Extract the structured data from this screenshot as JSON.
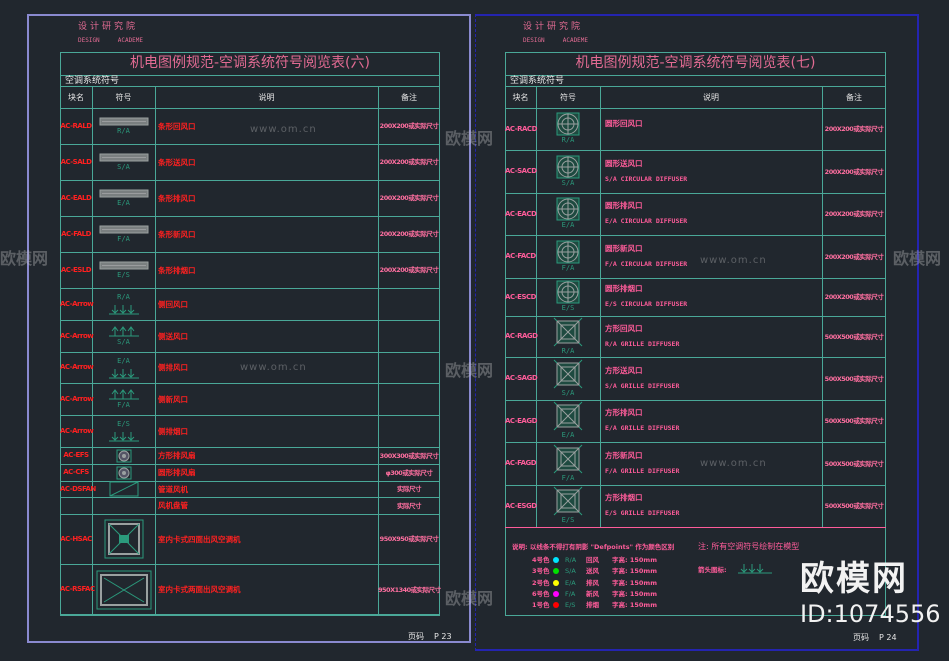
{
  "colors": {
    "line": "#4aa898",
    "title": "#e26b93",
    "code_left": "#ff2020",
    "code_right": "#ff5c9a",
    "note": "#ff5c9a",
    "symbol": "#2b9a7c"
  },
  "left": {
    "academy_cn": "设计研究院",
    "academy_en": "DESIGN     ACADEME",
    "title": "机电图例规范-空调系统符号阅览表(六)",
    "subtitle": "空调系统符号",
    "headers": [
      "块名",
      "符号",
      "说明",
      "备注"
    ],
    "rows": [
      {
        "code": "AC-RALD",
        "symbol": "bar",
        "label": "R/A",
        "desc": "条形回风口",
        "note": "200X200或实际尺寸"
      },
      {
        "code": "AC-SALD",
        "symbol": "bar",
        "label": "S/A",
        "desc": "条形送风口",
        "note": "200X200或实际尺寸"
      },
      {
        "code": "AC-EALD",
        "symbol": "bar",
        "label": "E/A",
        "desc": "条形排风口",
        "note": "200X200或实际尺寸"
      },
      {
        "code": "AC-FALD",
        "symbol": "bar",
        "label": "F/A",
        "desc": "条形新风口",
        "note": "200X200或实际尺寸"
      },
      {
        "code": "AC-ESLD",
        "symbol": "bar",
        "label": "E/S",
        "desc": "条形排烟口",
        "note": "200X200或实际尺寸"
      },
      {
        "code": "AC-Arrow",
        "symbol": "arrow-down",
        "label": "R/A",
        "desc": "侧回风口",
        "note": ""
      },
      {
        "code": "AC-Arrow",
        "symbol": "arrow-up",
        "label": "S/A",
        "desc": "侧送风口",
        "note": ""
      },
      {
        "code": "AC-Arrow",
        "symbol": "arrow-down",
        "label": "E/A",
        "desc": "侧排风口",
        "note": ""
      },
      {
        "code": "AC-Arrow",
        "symbol": "arrow-up",
        "label": "F/A",
        "desc": "侧新风口",
        "note": ""
      },
      {
        "code": "AC-Arrow",
        "symbol": "arrow-down",
        "label": "E/S",
        "desc": "侧排烟口",
        "note": ""
      },
      {
        "code": "AC-EFS",
        "symbol": "fan",
        "label": "",
        "desc": "方形排风扇",
        "note": "300X300或实际尺寸"
      },
      {
        "code": "AC-CFS",
        "symbol": "fan",
        "label": "",
        "desc": "圆形排风扇",
        "note": "φ300或实际尺寸"
      },
      {
        "code": "AC-DSFAN",
        "symbol": "fcu",
        "label": "",
        "desc": "管道风机",
        "note": "实际尺寸"
      },
      {
        "code": "",
        "symbol": "none",
        "label": "",
        "desc": "风机盘管",
        "note": "实际尺寸"
      },
      {
        "code": "AC-HSAC",
        "symbol": "cassette4",
        "label": "",
        "desc": "室内卡式四面出风空调机",
        "note": "950X950或实际尺寸"
      },
      {
        "code": "AC-RSFAC",
        "symbol": "cassette2",
        "label": "",
        "desc": "室内卡式两面出风空调机",
        "note": "950X1340或实际尺寸"
      }
    ],
    "page_label": "页码",
    "page_number": "P 23"
  },
  "right": {
    "academy_cn": "设计研究院",
    "academy_en": "DESIGN     ACADEME",
    "title": "机电图例规范-空调系统符号阅览表(七)",
    "subtitle": "空调系统符号",
    "headers": [
      "块名",
      "符号",
      "说明",
      "备注"
    ],
    "rows": [
      {
        "code": "AC-RACD",
        "symbol": "round",
        "label": "R/A",
        "desc": "圆形回风口",
        "desc_en": "",
        "note": "200X200或实际尺寸"
      },
      {
        "code": "AC-SACD",
        "symbol": "round",
        "label": "S/A",
        "desc": "圆形送风口",
        "desc_en": "S/A CIRCULAR DIFFUSER",
        "note": "200X200或实际尺寸"
      },
      {
        "code": "AC-EACD",
        "symbol": "round",
        "label": "E/A",
        "desc": "圆形排风口",
        "desc_en": "E/A CIRCULAR DIFFUSER",
        "note": "200X200或实际尺寸"
      },
      {
        "code": "AC-FACD",
        "symbol": "round",
        "label": "F/A",
        "desc": "圆形新风口",
        "desc_en": "F/A CIRCULAR DIFFUSER",
        "note": "200X200或实际尺寸"
      },
      {
        "code": "AC-ESCD",
        "symbol": "round",
        "label": "E/S",
        "desc": "圆形排烟口",
        "desc_en": "E/S CIRCULAR DIFFUSER",
        "note": "200X200或实际尺寸"
      },
      {
        "code": "AC-RAGD",
        "symbol": "square",
        "label": "R/A",
        "desc": "方形回风口",
        "desc_en": "R/A GRILLE DIFFUSER",
        "note": "500X500或实际尺寸"
      },
      {
        "code": "AC-SAGD",
        "symbol": "square",
        "label": "S/A",
        "desc": "方形送风口",
        "desc_en": "S/A GRILLE DIFFUSER",
        "note": "500X500或实际尺寸"
      },
      {
        "code": "AC-EAGD",
        "symbol": "square",
        "label": "E/A",
        "desc": "方形排风口",
        "desc_en": "E/A GRILLE DIFFUSER",
        "note": "500X500或实际尺寸"
      },
      {
        "code": "AC-FAGD",
        "symbol": "square",
        "label": "F/A",
        "desc": "方形新风口",
        "desc_en": "F/A GRILLE DIFFUSER",
        "note": "500X500或实际尺寸"
      },
      {
        "code": "AC-ESGD",
        "symbol": "square",
        "label": "E/S",
        "desc": "方形排烟口",
        "desc_en": "E/S GRILLE DIFFUSER",
        "note": "500X500或实际尺寸"
      }
    ],
    "legend_title": "说明: 以线条不得打有阴影 \"Defpoints\" 作为颜色区别",
    "legend": [
      {
        "color_name": "4号色",
        "color": "#00e5ff",
        "label": "R/A",
        "type": "回风",
        "height": "字高: 150mm"
      },
      {
        "color_name": "3号色",
        "color": "#00e000",
        "label": "S/A",
        "type": "送风",
        "height": "字高: 150mm"
      },
      {
        "color_name": "2号色",
        "color": "#ffff00",
        "label": "E/A",
        "type": "排风",
        "height": "字高: 150mm"
      },
      {
        "color_name": "6号色",
        "color": "#ff00ff",
        "label": "F/A",
        "type": "新风",
        "height": "字高: 150mm"
      },
      {
        "color_name": "1号色",
        "color": "#ff0000",
        "label": "E/S",
        "type": "排烟",
        "height": "字高: 150mm"
      }
    ],
    "note": "注: 所有空调符号绘制在模型",
    "arrow_label": "箭头图标:",
    "page_label": "页码",
    "page_number": "P 24"
  },
  "watermark": {
    "brand": "欧模网",
    "url": "www.om.cn",
    "id": "ID:1074556"
  }
}
